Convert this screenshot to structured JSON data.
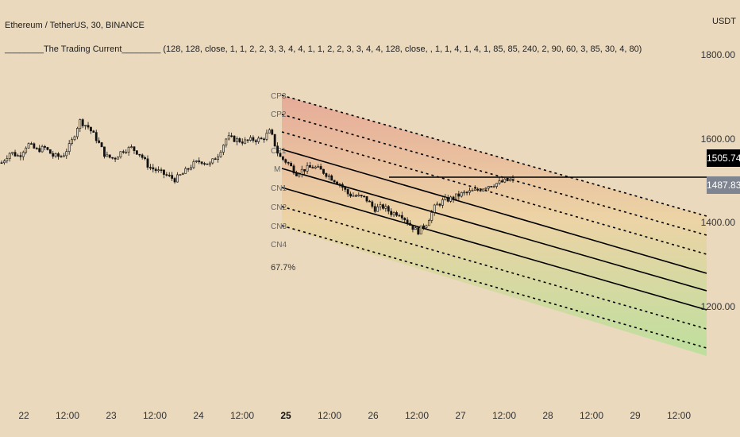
{
  "header": {
    "symbol": "Ethereum / TetherUS, 30, BINANCE",
    "indicator_name": "________The Trading Current________",
    "indicator_params": "(128, 128, close, 1, 1, 2, 2, 3, 3, 4, 4, 1, 1, 2, 2, 3, 3, 4, 4, 128, close, , 1, 1, 4, 1, 4, 1, 85, 85, 240, 2, 90, 60, 3, 85, 30, 4, 80)"
  },
  "price_axis": {
    "unit": "USDT",
    "labels": [
      "1800.00",
      "1600.00",
      "1400.00",
      "1200.00"
    ],
    "current_price": "1505.74",
    "secondary_price": "1487.83"
  },
  "time_axis": {
    "labels": [
      "22",
      "12:00",
      "23",
      "12:00",
      "24",
      "12:00",
      "25",
      "12:00",
      "26",
      "12:00",
      "27",
      "12:00",
      "28",
      "12:00",
      "29",
      "12:00"
    ],
    "bold_label": "25"
  },
  "channel_labels": [
    "CP3",
    "CP2",
    "CP1",
    "M",
    "CN1",
    "CN2",
    "CN3",
    "CN4"
  ],
  "probability_label": "67.7%",
  "colors": {
    "background": "#ead9bd",
    "upper_zone": "#e6a694",
    "lower_zone": "#b9e09a",
    "mid_zone": "#ecd3a3",
    "current_price_tag": "#000000",
    "secondary_price_tag": "#7f8590"
  },
  "chart_data": {
    "type": "candlestick",
    "price_range": [
      1050,
      1895
    ],
    "y_ticks": [
      1800,
      1600,
      1400,
      1200
    ],
    "grid": false,
    "price_path_samples": [
      1545,
      1570,
      1560,
      1590,
      1575,
      1580,
      1560,
      1560,
      1590,
      1645,
      1630,
      1600,
      1560,
      1555,
      1575,
      1580,
      1565,
      1535,
      1525,
      1515,
      1505,
      1520,
      1540,
      1550,
      1540,
      1565,
      1605,
      1600,
      1595,
      1600,
      1600,
      1620,
      1560,
      1545,
      1520,
      1530,
      1535,
      1525,
      1510,
      1495,
      1470,
      1465,
      1460,
      1435,
      1440,
      1425,
      1425,
      1400,
      1380,
      1400,
      1440,
      1455,
      1460,
      1470,
      1475,
      1480,
      1490,
      1495,
      1500,
      1505
    ],
    "current_price": 1505.74,
    "secondary_price": 1487.83
  }
}
